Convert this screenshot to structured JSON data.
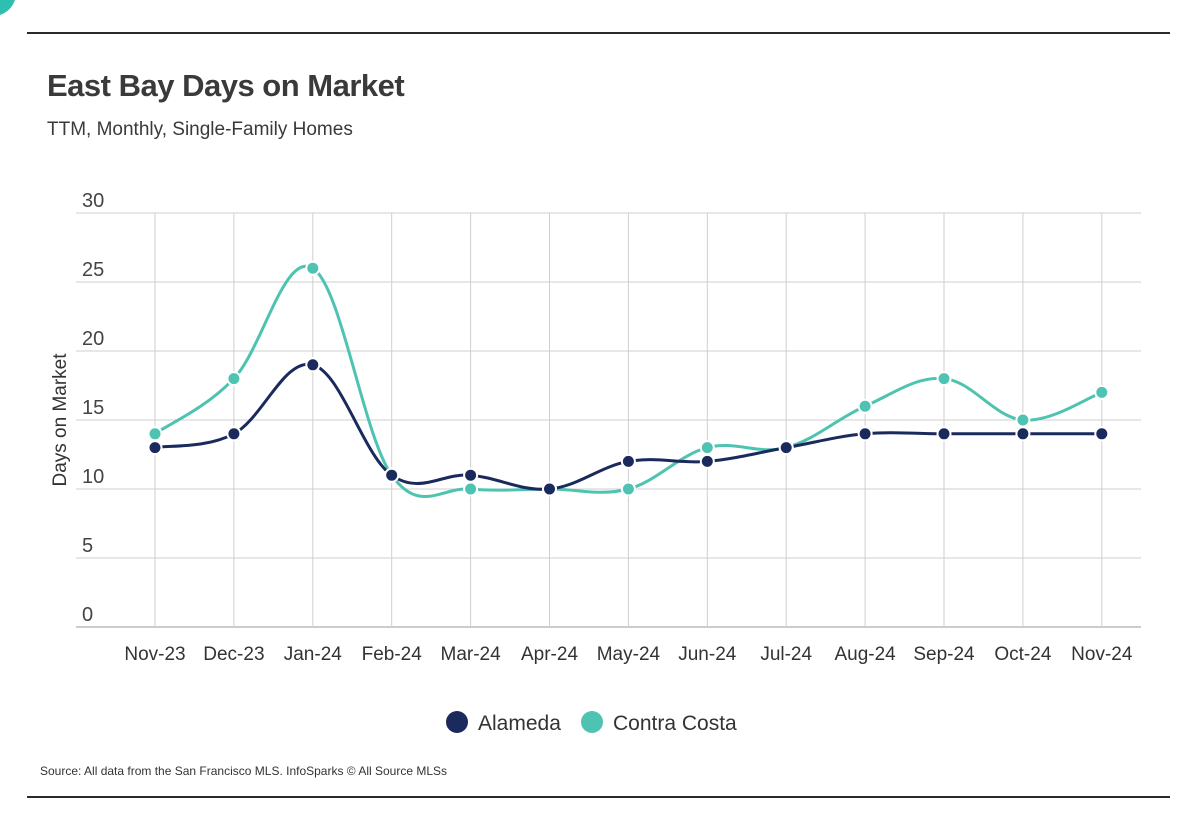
{
  "header": {
    "title": "East Bay Days on Market",
    "subtitle": "TTM, Monthly, Single-Family Homes"
  },
  "footer": {
    "source": "Source:  All data from the San Francisco MLS. InfoSparks © All Source MLSs"
  },
  "chart_data": {
    "type": "line",
    "title": "East Bay Days on Market",
    "subtitle": "TTM, Monthly, Single-Family Homes",
    "xlabel": "",
    "ylabel": "Days on Market",
    "ylim": [
      0,
      30
    ],
    "yticks": [
      0,
      5,
      10,
      15,
      20,
      25,
      30
    ],
    "grid": true,
    "legend_position": "bottom",
    "categories": [
      "Nov-23",
      "Dec-23",
      "Jan-24",
      "Feb-24",
      "Mar-24",
      "Apr-24",
      "May-24",
      "Jun-24",
      "Jul-24",
      "Aug-24",
      "Sep-24",
      "Oct-24",
      "Nov-24"
    ],
    "series": [
      {
        "name": "Alameda",
        "color": "#1b2a5c",
        "values": [
          13,
          14,
          19,
          11,
          11,
          10,
          12,
          12,
          13,
          14,
          14,
          14,
          14
        ]
      },
      {
        "name": "Contra Costa",
        "color": "#4fc3b1",
        "values": [
          14,
          18,
          26,
          11,
          10,
          10,
          10,
          13,
          13,
          16,
          18,
          15,
          17
        ]
      }
    ]
  }
}
